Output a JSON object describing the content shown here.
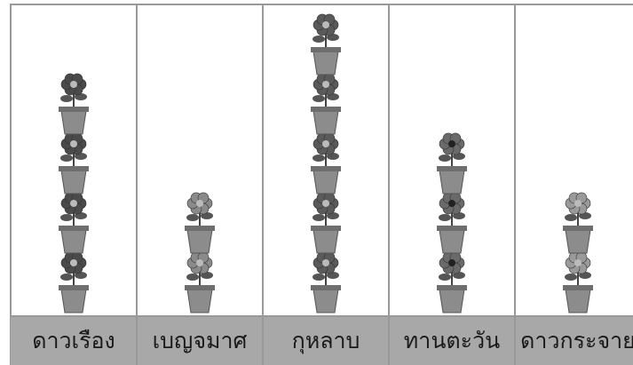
{
  "chart_data": {
    "type": "pictograph",
    "categories": [
      "ดาวเรือง",
      "เบญจมาศ",
      "กุหลาบ",
      "ทานตะวัน",
      "ดาวกระจาย"
    ],
    "values": [
      4,
      2,
      5,
      3,
      2
    ]
  }
}
